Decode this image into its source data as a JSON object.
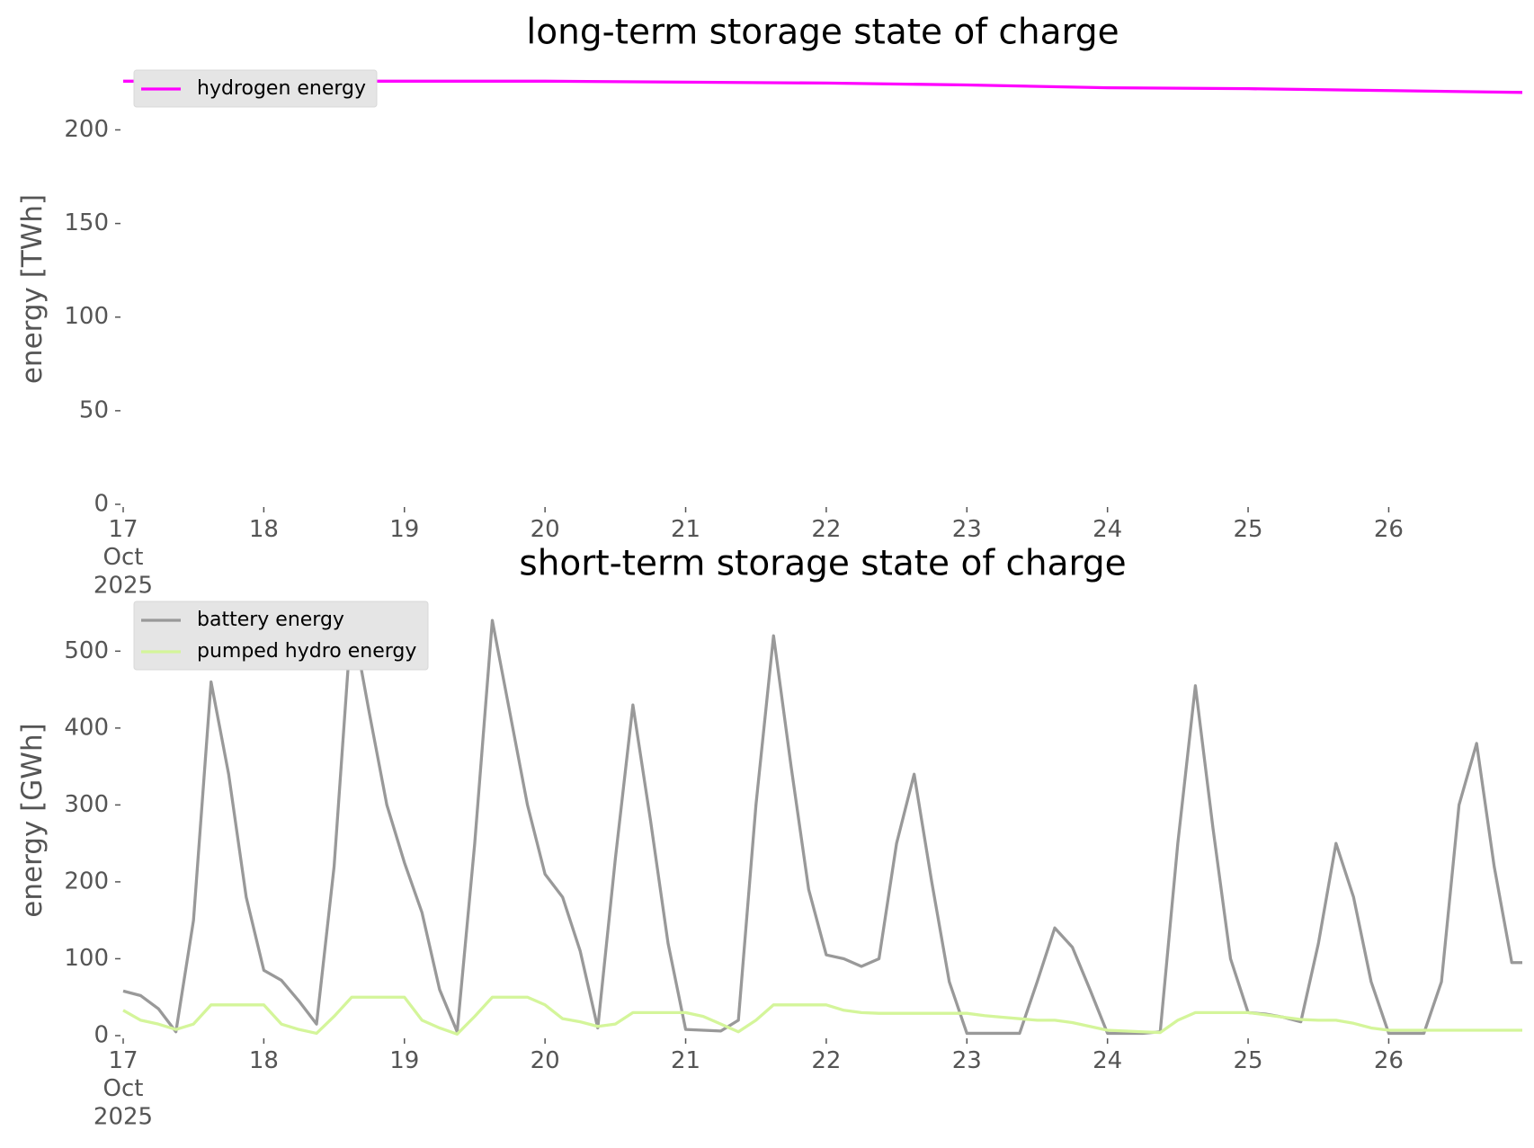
{
  "chart_data": [
    {
      "type": "line",
      "title": "long-term storage state of charge",
      "y_label": "energy [TWh]",
      "x": [
        17,
        18,
        19,
        20,
        21,
        22,
        23,
        24,
        25,
        26,
        26.95
      ],
      "series": [
        {
          "name": "hydrogen energy",
          "color": "#ff00ff",
          "values": [
            226,
            226,
            226,
            226,
            225.5,
            225,
            224,
            222.5,
            222,
            221,
            220
          ]
        }
      ],
      "xlim": [
        17,
        26.95
      ],
      "xticks": [
        {
          "value": 17,
          "label": "17 Oct 2025"
        },
        18,
        19,
        20,
        21,
        22,
        23,
        24,
        25,
        26
      ],
      "ylim": [
        0,
        230
      ],
      "yticks": [
        0,
        50,
        100,
        150,
        200
      ],
      "grid": false,
      "legend": "upper left"
    },
    {
      "type": "line",
      "title": "short-term storage state of charge",
      "y_label": "energy [GWh]",
      "x": [
        17,
        17.125,
        17.25,
        17.375,
        17.5,
        17.625,
        17.75,
        17.875,
        18,
        18.125,
        18.25,
        18.375,
        18.5,
        18.625,
        18.75,
        18.875,
        19,
        19.125,
        19.25,
        19.375,
        19.5,
        19.625,
        19.75,
        19.875,
        20,
        20.125,
        20.25,
        20.375,
        20.5,
        20.625,
        20.75,
        20.875,
        21,
        21.125,
        21.25,
        21.375,
        21.5,
        21.625,
        21.75,
        21.875,
        22,
        22.125,
        22.25,
        22.375,
        22.5,
        22.625,
        22.75,
        22.875,
        23,
        23.125,
        23.25,
        23.375,
        23.5,
        23.625,
        23.75,
        23.875,
        24,
        24.125,
        24.25,
        24.375,
        24.5,
        24.625,
        24.75,
        24.875,
        25,
        25.125,
        25.25,
        25.375,
        25.5,
        25.625,
        25.75,
        25.875,
        26,
        26.125,
        26.25,
        26.375,
        26.5,
        26.625,
        26.75,
        26.875,
        26.95
      ],
      "series": [
        {
          "name": "battery energy",
          "color": "#999999",
          "values": [
            58,
            52,
            35,
            5,
            150,
            460,
            340,
            180,
            85,
            72,
            45,
            15,
            220,
            545,
            420,
            300,
            225,
            160,
            60,
            5,
            250,
            540,
            420,
            300,
            210,
            180,
            110,
            10,
            230,
            430,
            280,
            120,
            8,
            7,
            6,
            20,
            300,
            520,
            350,
            190,
            105,
            100,
            90,
            100,
            250,
            340,
            200,
            70,
            3,
            3,
            3,
            3,
            70,
            140,
            115,
            60,
            3,
            3,
            3,
            5,
            250,
            455,
            270,
            100,
            30,
            28,
            24,
            18,
            120,
            250,
            180,
            70,
            3,
            3,
            3,
            70,
            300,
            380,
            220,
            95,
            95
          ]
        },
        {
          "name": "pumped hydro energy",
          "color": "#d4f59a",
          "values": [
            33,
            20,
            15,
            8,
            15,
            40,
            40,
            40,
            40,
            15,
            8,
            3,
            25,
            50,
            50,
            50,
            50,
            20,
            10,
            2,
            25,
            50,
            50,
            50,
            40,
            22,
            18,
            12,
            15,
            30,
            30,
            30,
            30,
            25,
            15,
            5,
            20,
            40,
            40,
            40,
            40,
            33,
            30,
            29,
            29,
            29,
            29,
            29,
            29,
            26,
            24,
            22,
            20,
            20,
            17,
            12,
            7,
            6,
            5,
            4,
            20,
            30,
            30,
            30,
            30,
            27,
            24,
            21,
            20,
            20,
            16,
            10,
            7,
            7,
            7,
            7,
            7,
            7,
            7,
            7,
            7
          ]
        }
      ],
      "xlim": [
        17,
        26.95
      ],
      "xticks": [
        {
          "value": 17,
          "label": "17 Oct 2025"
        },
        18,
        19,
        20,
        21,
        22,
        23,
        24,
        25,
        26
      ],
      "ylim": [
        0,
        560
      ],
      "yticks": [
        0,
        100,
        200,
        300,
        400,
        500
      ],
      "grid": false,
      "legend": "upper left"
    }
  ]
}
